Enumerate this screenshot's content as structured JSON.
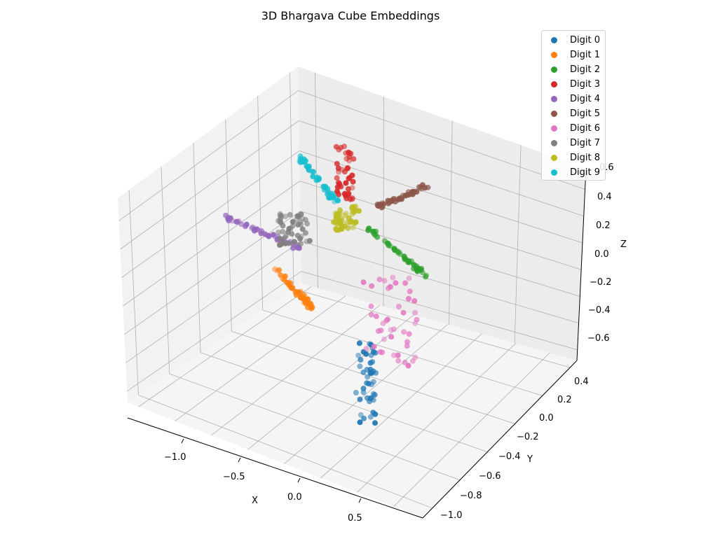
{
  "chart_data": {
    "type": "scatter",
    "dimension": "3d",
    "title": "3D Bhargava Cube Embeddings",
    "xlabel": "X",
    "ylabel": "Y",
    "zlabel": "Z",
    "xticks": [
      "−1.0",
      "−0.5",
      "0.0",
      "0.5"
    ],
    "yticks": [
      "−1.0",
      "−0.8",
      "−0.6",
      "−0.4",
      "−0.2",
      "0.0",
      "0.2",
      "0.4"
    ],
    "zticks": [
      "−0.6",
      "−0.4",
      "−0.2",
      "0.0",
      "0.2",
      "0.4",
      "0.6"
    ],
    "xlim": [
      -1.3,
      0.85
    ],
    "ylim": [
      -1.05,
      0.5
    ],
    "zlim": [
      -0.7,
      0.65
    ],
    "grid": true,
    "legend_position": "upper right",
    "series": [
      {
        "name": "Digit 0",
        "color": "#1f77b4",
        "approx_center": [
          0.45,
          -0.55,
          -0.45
        ],
        "approx_screen_extent": [
          [
            510,
            490
          ],
          [
            535,
            605
          ]
        ]
      },
      {
        "name": "Digit 1",
        "color": "#ff7f0e",
        "approx_center": [
          -0.45,
          0.3,
          -0.35
        ],
        "approx_screen_extent": [
          [
            395,
            385
          ],
          [
            445,
            440
          ]
        ]
      },
      {
        "name": "Digit 2",
        "color": "#2ca02c",
        "approx_center": [
          0.4,
          0.2,
          0.05
        ],
        "approx_screen_extent": [
          [
            525,
            325
          ],
          [
            610,
            395
          ]
        ]
      },
      {
        "name": "Digit 3",
        "color": "#d62728",
        "approx_center": [
          -0.1,
          0.45,
          0.45
        ],
        "approx_screen_extent": [
          [
            480,
            205
          ],
          [
            505,
            285
          ]
        ]
      },
      {
        "name": "Digit 4",
        "color": "#9467bd",
        "approx_center": [
          -1.0,
          0.1,
          0.2
        ],
        "approx_screen_extent": [
          [
            320,
            310
          ],
          [
            430,
            355
          ]
        ]
      },
      {
        "name": "Digit 5",
        "color": "#8c564b",
        "approx_center": [
          0.55,
          0.45,
          0.35
        ],
        "approx_screen_extent": [
          [
            540,
            265
          ],
          [
            610,
            295
          ]
        ]
      },
      {
        "name": "Digit 6",
        "color": "#e377c2",
        "approx_center": [
          0.5,
          -0.1,
          -0.2
        ],
        "approx_screen_extent": [
          [
            515,
            395
          ],
          [
            595,
            530
          ]
        ]
      },
      {
        "name": "Digit 7",
        "color": "#7f7f7f",
        "approx_center": [
          -0.75,
          0.2,
          0.15
        ],
        "approx_screen_extent": [
          [
            395,
            305
          ],
          [
            440,
            350
          ]
        ]
      },
      {
        "name": "Digit 8",
        "color": "#bcbd22",
        "approx_center": [
          -0.2,
          0.3,
          0.2
        ],
        "approx_screen_extent": [
          [
            475,
            295
          ],
          [
            510,
            330
          ]
        ]
      },
      {
        "name": "Digit 9",
        "color": "#17becf",
        "approx_center": [
          -0.6,
          0.45,
          0.45
        ],
        "approx_screen_extent": [
          [
            425,
            220
          ],
          [
            480,
            290
          ]
        ]
      }
    ]
  },
  "legend": {
    "items": [
      {
        "label": "Digit 0",
        "color": "#1f77b4"
      },
      {
        "label": "Digit 1",
        "color": "#ff7f0e"
      },
      {
        "label": "Digit 2",
        "color": "#2ca02c"
      },
      {
        "label": "Digit 3",
        "color": "#d62728"
      },
      {
        "label": "Digit 4",
        "color": "#9467bd"
      },
      {
        "label": "Digit 5",
        "color": "#8c564b"
      },
      {
        "label": "Digit 6",
        "color": "#e377c2"
      },
      {
        "label": "Digit 7",
        "color": "#7f7f7f"
      },
      {
        "label": "Digit 8",
        "color": "#bcbd22"
      },
      {
        "label": "Digit 9",
        "color": "#17becf"
      }
    ]
  }
}
